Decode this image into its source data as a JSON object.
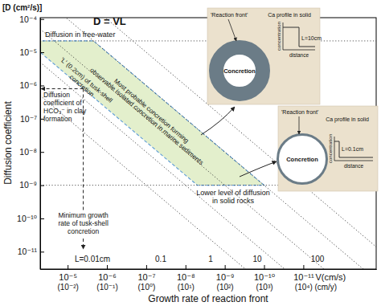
{
  "chart_data": {
    "type": "line",
    "title": "D = VL",
    "xlabel": "Growth rate of reaction front",
    "ylabel": "Diffusion coefficient",
    "y_unit": "[D (cm²/s)]",
    "x_unit": "V(cm/s)",
    "x2_unit": "(cm/y)",
    "log": true,
    "grid": false,
    "xlim": [
      5e-05,
      1.4e-13
    ],
    "xticks": [
      {
        "value": 1e-05,
        "label": "10⁻⁵"
      },
      {
        "value": 1e-06,
        "label": "10⁻⁶"
      },
      {
        "value": 1e-07,
        "label": "10⁻⁷"
      },
      {
        "value": 1e-08,
        "label": "10⁻⁸"
      },
      {
        "value": 1e-09,
        "label": "10⁻⁹"
      },
      {
        "value": 1e-10,
        "label": "10⁻¹⁰"
      },
      {
        "value": 1e-11,
        "label": "10⁻¹¹"
      }
    ],
    "x2lim": [
      5e-05,
      1.4e-13
    ],
    "x2ticks": [
      {
        "value": 1e-05,
        "label": "(10⁻²)"
      },
      {
        "value": 1e-06,
        "label": "(10⁻¹)"
      },
      {
        "value": 1e-07,
        "label": "(10⁰)"
      },
      {
        "value": 1e-08,
        "label": "(10¹)"
      },
      {
        "value": 1e-09,
        "label": "(10²)"
      },
      {
        "value": 1e-10,
        "label": "(10³)"
      },
      {
        "value": 1e-11,
        "label": "(10⁴)"
      }
    ],
    "ylim": [
      3e-12,
      0.00011
    ],
    "yticks": [
      {
        "value": 0.0001,
        "label": "10⁻⁴"
      },
      {
        "value": 1e-05,
        "label": "10⁻⁵"
      },
      {
        "value": 1e-06,
        "label": "10⁻⁶"
      },
      {
        "value": 1e-07,
        "label": "10⁻⁷"
      },
      {
        "value": 1e-08,
        "label": "10⁻⁸"
      },
      {
        "value": 1e-09,
        "label": "10⁻⁹"
      },
      {
        "value": 1e-10,
        "label": "10⁻¹⁰"
      },
      {
        "value": 1e-11,
        "label": "10⁻¹¹"
      }
    ],
    "series": [
      {
        "name": "L=0.01cm",
        "L": 0.01,
        "line_style": "dotted"
      },
      {
        "name": "0.1",
        "L": 0.1,
        "line_style": "dotted"
      },
      {
        "name": "1",
        "L": 1,
        "line_style": "dotted"
      },
      {
        "name": "10",
        "L": 10,
        "line_style": "dotted"
      },
      {
        "name": "100",
        "L": 100,
        "line_style": "dotted"
      }
    ],
    "band": {
      "L": [
        0.2,
        10
      ],
      "D": [
        1e-09,
        2.2e-05
      ],
      "color": "#e3efcc",
      "line_style": "dashed",
      "texts": [
        "'L' (0.2cm) of tusk-shell\nconcretion",
        "Most probable concretion forming\nobservable isolated concretion in marine sediments"
      ]
    },
    "levels": [
      {
        "text": "Diffusion in free-water",
        "D": 2.2e-05,
        "line_style": "dotted"
      },
      {
        "text": "Lower level of diffusion\nin solid rocks",
        "D": 1e-09,
        "line_style": "dotted"
      }
    ],
    "reference_D": {
      "text": "Diffusion\ncoefficient of\nHCO₃⁻ in clay\nformation",
      "D": 8e-07
    },
    "reference_V": {
      "text": "Minimum growth\nrate of tusk-shell\nconcretion",
      "V": 4e-06
    },
    "insets": [
      {
        "L": 10,
        "label": "L=10cm",
        "front": "'Reaction front'",
        "profile": "Ca profile in solid",
        "ylabel": "concentration",
        "xlabel": "distance",
        "core": "Concretion"
      },
      {
        "L": 0.1,
        "label": "L=0.1cm",
        "front": "'Reaction front'",
        "profile": "Ca profile in solid",
        "ylabel": "concentration",
        "xlabel": "distance",
        "core": "Concretion"
      }
    ]
  }
}
